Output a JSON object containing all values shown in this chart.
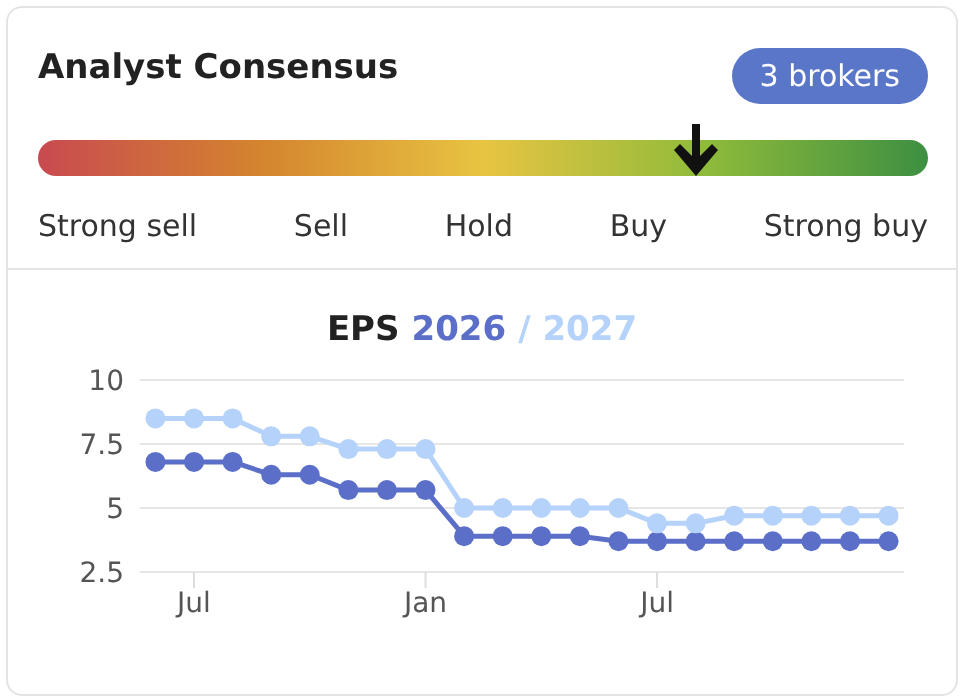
{
  "chart_data": [
    {
      "type": "other",
      "title": "Analyst Consensus",
      "annotations": [
        "3 brokers"
      ],
      "categories": [
        "Strong sell",
        "Sell",
        "Hold",
        "Buy",
        "Strong buy"
      ],
      "colors": [
        "#c84a50",
        "#d4842e",
        "#e8c442",
        "#8fbb3a",
        "#3d8f42"
      ]
    },
    {
      "type": "line",
      "title": "EPS",
      "legend": "top",
      "grid": "y",
      "marker": "circle",
      "line_style": "solid",
      "categories": [
        null,
        "Jul",
        null,
        null,
        null,
        null,
        null,
        "Jan",
        null,
        null,
        null,
        null,
        null,
        "Jul",
        null,
        null,
        null,
        null,
        null,
        null
      ],
      "ylim": [
        2.5,
        10
      ],
      "yticks": [
        2.5,
        7.5,
        5,
        10
      ],
      "series": [
        {
          "name": "2026",
          "color": "#5b6fc8",
          "values": [
            6.8,
            6.8,
            6.8,
            6.3,
            6.3,
            5.7,
            5.7,
            5.7,
            3.9,
            3.9,
            3.9,
            3.9,
            3.7,
            3.7,
            3.7,
            3.7,
            3.7,
            3.7,
            3.7,
            3.7
          ]
        },
        {
          "name": "/ 2027",
          "color": "#b5d2fb",
          "values": [
            8.5,
            8.5,
            8.5,
            7.8,
            7.8,
            7.3,
            7.3,
            7.3,
            5.0,
            5.0,
            5.0,
            5.0,
            5.0,
            4.4,
            4.4,
            4.7,
            4.7,
            4.7,
            4.7,
            4.7
          ]
        }
      ]
    }
  ]
}
